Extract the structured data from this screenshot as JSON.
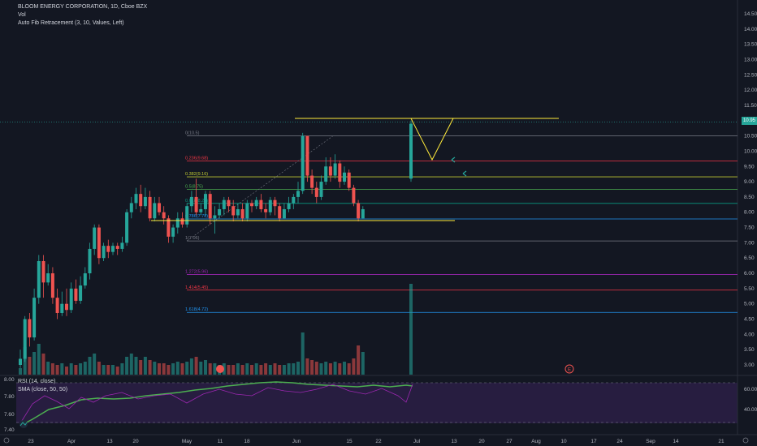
{
  "legend": {
    "symbol": "BLOOM ENERGY CORPORATION, 1D, Cboe BZX",
    "vol": "Vol",
    "indicator": "Auto Fib Retracement (3, 10, Values, Left)"
  },
  "rsi_legend": {
    "rsi": "RSI (14, close)",
    "sma": "SMA (close, 50, 50)"
  },
  "price_axis": [
    "14.50",
    "14.00",
    "13.50",
    "13.00",
    "12.50",
    "12.00",
    "11.50",
    "11.00",
    "10.50",
    "10.00",
    "9.50",
    "9.00",
    "8.50",
    "8.00",
    "7.50",
    "7.00",
    "6.50",
    "6.00",
    "5.50",
    "5.00",
    "4.50",
    "4.00",
    "3.50",
    "3.00"
  ],
  "current_price": "10.95",
  "rsi_axis": [
    "60.00",
    "40.00"
  ],
  "left_axis": [
    "8.00",
    "7.80",
    "7.60",
    "7.40"
  ],
  "time_axis": [
    "23",
    "Apr",
    "13",
    "20",
    "May",
    "11",
    "18",
    "Jun",
    "15",
    "22",
    "Jul",
    "13",
    "20",
    "27",
    "Aug",
    "10",
    "17",
    "24",
    "Sep",
    "14",
    "21"
  ],
  "fib_levels": [
    {
      "label": "0(10.5)",
      "color": "#787b86"
    },
    {
      "label": "0.236(9.68)",
      "color": "#f23645"
    },
    {
      "label": "0.382(9.16)",
      "color": "#c0ca33"
    },
    {
      "label": "0.5(8.75)",
      "color": "#4caf50"
    },
    {
      "label": "0.618(8.29)",
      "color": "#089981"
    },
    {
      "label": "0.786(7.78)",
      "color": "#2196f3"
    },
    {
      "label": "1(7.06)",
      "color": "#787b86"
    },
    {
      "label": "1.272(5.96)",
      "color": "#9c27b0"
    },
    {
      "label": "1.414(5.45)",
      "color": "#f23645"
    },
    {
      "label": "1.618(4.72)",
      "color": "#2196f3"
    }
  ],
  "colors": {
    "up": "#26a69a",
    "down": "#ef5350",
    "yellow": "#ffeb3b",
    "bg": "#131722"
  },
  "icons": [
    "tradingview-logo-icon",
    "event-earnings-icon",
    "event-e-icon",
    "settings-icon"
  ]
}
